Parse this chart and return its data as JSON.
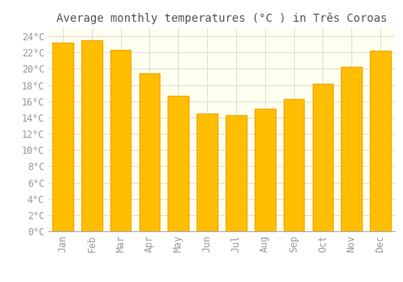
{
  "title": "Average monthly temperatures (°C ) in Três Coroas",
  "months": [
    "Jan",
    "Feb",
    "Mar",
    "Apr",
    "May",
    "Jun",
    "Jul",
    "Aug",
    "Sep",
    "Oct",
    "Nov",
    "Dec"
  ],
  "values": [
    23.2,
    23.5,
    22.3,
    19.4,
    16.7,
    14.5,
    14.3,
    15.1,
    16.3,
    18.2,
    20.2,
    22.2
  ],
  "bar_color_face": "#FFBE00",
  "bar_color_edge": "#F5A800",
  "background_color": "#FFFFFF",
  "plot_bg_color": "#FFFFF0",
  "grid_color": "#D8D8D8",
  "ylim": [
    0,
    25
  ],
  "yticks": [
    0,
    2,
    4,
    6,
    8,
    10,
    12,
    14,
    16,
    18,
    20,
    22,
    24
  ],
  "title_fontsize": 10,
  "tick_fontsize": 8.5,
  "tick_color": "#999999",
  "title_color": "#555555"
}
